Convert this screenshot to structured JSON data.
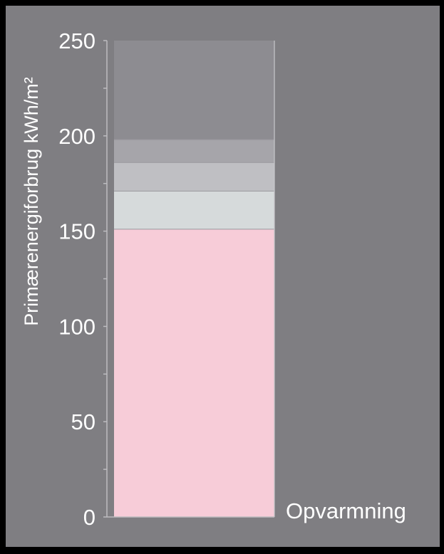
{
  "chart_data": {
    "type": "bar",
    "stacked": true,
    "categories": [
      ""
    ],
    "series": [
      {
        "values": [
          151
        ],
        "color": "#f7ccd8"
      },
      {
        "values": [
          20
        ],
        "color": "#d6dadb"
      },
      {
        "values": [
          15
        ],
        "color": "#bfbfc3"
      },
      {
        "values": [
          12
        ],
        "color": "#a6a5aa"
      },
      {
        "values": [
          52
        ],
        "color": "#8d8c91"
      }
    ],
    "ylabel": "Primærenergiforbrug kWh/m²",
    "ylim": [
      0,
      250
    ],
    "yticks": [
      0,
      50,
      100,
      150,
      200,
      250
    ],
    "ytick_labels": [
      "0",
      "50",
      "100",
      "150",
      "200",
      "250"
    ],
    "minor_tick_step": 25,
    "annotation": "Opvarmning",
    "grid": false
  },
  "colors": {
    "background": "#7f7e82",
    "frame": "#000000",
    "axis": "#bdbcc0",
    "text": "#ffffff"
  }
}
